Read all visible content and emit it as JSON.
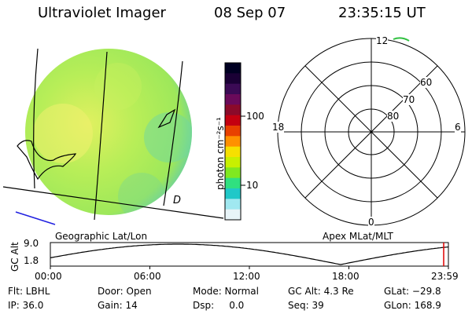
{
  "header": {
    "title": "Ultraviolet Imager",
    "date": "08 Sep 07",
    "time": "23:35:15 UT"
  },
  "colorbar": {
    "unit_label": "photon cm⁻²s⁻¹",
    "ticks": [
      "100",
      "10"
    ],
    "colors": [
      "#000022",
      "#1a0035",
      "#3b0a55",
      "#6a0a5a",
      "#8b0a2a",
      "#c40010",
      "#e84000",
      "#ff9000",
      "#f6e000",
      "#c8f000",
      "#80e820",
      "#30e080",
      "#20c8c8",
      "#a0e8f0",
      "#e8f4f8"
    ]
  },
  "polar": {
    "mlt_labels": {
      "top": "12",
      "left": "18",
      "right": "6",
      "bottom": "0"
    },
    "lat_labels": [
      "60",
      "70",
      "80"
    ]
  },
  "labels": {
    "geo": "Geographic Lat/Lon",
    "apex": "Apex MLat/MLT",
    "glyph": "D",
    "gc_axis": "GC Alt"
  },
  "orbit_plot": {
    "y_ticks": [
      "9.0",
      "1.8"
    ],
    "x_ticks": [
      "00:00",
      "06:00",
      "12:00",
      "18:00",
      "23:59"
    ],
    "x_range_hours": [
      0,
      24
    ],
    "y_range": [
      1.8,
      9.0
    ]
  },
  "info": [
    [
      "Flt: LBHL",
      "Door: Open",
      "Mode: Normal",
      "GC Alt: 4.3 Re",
      "GLat: −29.8"
    ],
    [
      "IP: 36.0",
      "Gain: 14",
      "Dsp:     0.0",
      "Seq: 39",
      "GLon: 168.9"
    ]
  ],
  "theme": {
    "disk_base": "#9ee85a",
    "disk_bright": "#e0f060",
    "disk_edge": "#6ad0a0",
    "marker_red": "#e00000",
    "blue_line": "#2020e0"
  }
}
